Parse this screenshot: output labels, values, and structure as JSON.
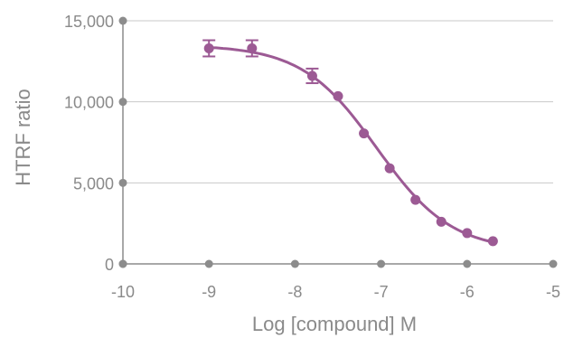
{
  "chart_data": {
    "type": "scatter",
    "title": "",
    "xlabel": "Log [compound] M",
    "ylabel": "HTRF ratio",
    "xlim": [
      -10,
      -5
    ],
    "ylim": [
      0,
      15000
    ],
    "x_ticks": [
      -10,
      -9,
      -8,
      -7,
      -6,
      -5
    ],
    "x_tick_labels": [
      "-10",
      "-9",
      "-8",
      "-7",
      "-6",
      "-5"
    ],
    "y_ticks": [
      0,
      5000,
      10000,
      15000
    ],
    "y_tick_labels": [
      "0",
      "5,000",
      "10,000",
      "15,000"
    ],
    "grid": "horizontal",
    "colors": {
      "series": "#9c5a94",
      "axis": "#8c8c8c",
      "grid": "#c8c8c8",
      "text": "#8a8a8a"
    },
    "series": [
      {
        "points": [
          {
            "x": -9.0,
            "y": 13300,
            "err": 500
          },
          {
            "x": -8.5,
            "y": 13300,
            "err": 500
          },
          {
            "x": -7.8,
            "y": 11600,
            "err": 450
          },
          {
            "x": -7.5,
            "y": 10350
          },
          {
            "x": -7.2,
            "y": 8050
          },
          {
            "x": -6.9,
            "y": 5900
          },
          {
            "x": -6.6,
            "y": 3950
          },
          {
            "x": -6.3,
            "y": 2600
          },
          {
            "x": -6.0,
            "y": 1900
          },
          {
            "x": -5.7,
            "y": 1400
          }
        ],
        "fit": {
          "bottom": 800,
          "top": 13500,
          "log_ic50": -7.05,
          "hill": -1.0
        }
      }
    ]
  }
}
